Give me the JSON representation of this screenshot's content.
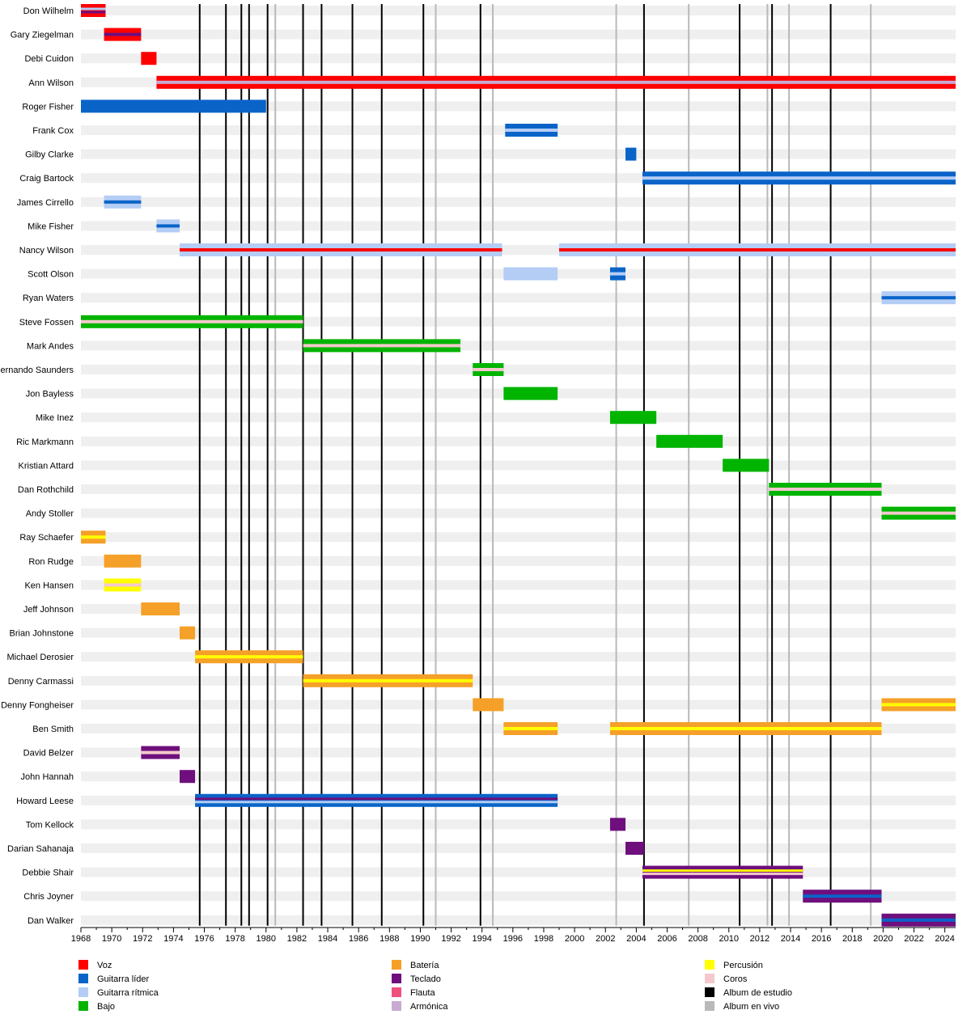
{
  "chart_data": {
    "type": "timeline",
    "x_range": [
      1968,
      2024.7
    ],
    "x_ticks": [
      1968,
      1970,
      1972,
      1974,
      1976,
      1978,
      1980,
      1982,
      1984,
      1986,
      1988,
      1990,
      1992,
      1994,
      1996,
      1998,
      2000,
      2002,
      2004,
      2006,
      2008,
      2010,
      2012,
      2014,
      2016,
      2018,
      2020,
      2022,
      2024
    ],
    "roles": [
      {
        "id": "voz",
        "label": "Voz",
        "color": "#ff0000"
      },
      {
        "id": "guitarra_lider",
        "label": "Guitarra líder",
        "color": "#0a64c8"
      },
      {
        "id": "guitarra_ritmica",
        "label": "Guitarra rítmica",
        "color": "#b4cdf5"
      },
      {
        "id": "bajo",
        "label": "Bajo",
        "color": "#00b400"
      },
      {
        "id": "bateria",
        "label": "Batería",
        "color": "#f5a028"
      },
      {
        "id": "teclado",
        "label": "Teclado",
        "color": "#6e0f7d"
      },
      {
        "id": "flauta",
        "label": "Flauta",
        "color": "#f0507d"
      },
      {
        "id": "armonica",
        "label": "Armónica",
        "color": "#c8aad2"
      },
      {
        "id": "percusion",
        "label": "Percusión",
        "color": "#ffff00"
      },
      {
        "id": "coros",
        "label": "Coros",
        "color": "#f5c8cd"
      },
      {
        "id": "album_estudio",
        "label": "Album de estudio",
        "color": "#000000"
      },
      {
        "id": "album_vivo",
        "label": "Album en vivo",
        "color": "#b9b9b9"
      }
    ],
    "studio_albums": [
      1975.7,
      1977.4,
      1978.4,
      1978.9,
      1980.1,
      1982.4,
      1983.6,
      1985.6,
      1987.5,
      1990.2,
      1993.9,
      2004.5,
      2010.7,
      2012.8,
      2016.6
    ],
    "live_albums": [
      1980.6,
      1991.0,
      1994.7,
      2002.7,
      2007.4,
      2012.5,
      2013.9,
      2019.2
    ],
    "members": [
      {
        "name": "Don Wilhelm",
        "periods": [
          {
            "start": 1968,
            "end": 1969.6,
            "role": "voz",
            "stripes": [
              "guitarra_ritmica",
              "teclado"
            ]
          }
        ]
      },
      {
        "name": "Gary Ziegelman",
        "periods": [
          {
            "start": 1969.5,
            "end": 1971.9,
            "role": "voz",
            "stripes": [
              "teclado"
            ]
          }
        ]
      },
      {
        "name": "Debi Cuidon",
        "periods": [
          {
            "start": 1971.9,
            "end": 1972.9,
            "role": "voz"
          }
        ]
      },
      {
        "name": "Ann Wilson",
        "periods": [
          {
            "start": 1972.9,
            "end": 2024.7,
            "role": "voz",
            "stripes": [
              "armonica"
            ]
          }
        ]
      },
      {
        "name": "Roger Fisher",
        "periods": [
          {
            "start": 1968,
            "end": 1980.0,
            "role": "guitarra_lider"
          }
        ]
      },
      {
        "name": "Frank Cox",
        "periods": [
          {
            "start": 1995.5,
            "end": 1998.9,
            "role": "guitarra_lider",
            "stripes": [
              "guitarra_ritmica"
            ]
          }
        ]
      },
      {
        "name": "Gilby Clarke",
        "periods": [
          {
            "start": 2003.3,
            "end": 2004.0,
            "role": "guitarra_lider"
          }
        ]
      },
      {
        "name": "Craig Bartock",
        "periods": [
          {
            "start": 2004.4,
            "end": 2024.7,
            "role": "guitarra_lider",
            "stripes": [
              "guitarra_ritmica"
            ]
          }
        ]
      },
      {
        "name": "James Cirrello",
        "periods": [
          {
            "start": 1969.5,
            "end": 1971.9,
            "role": "guitarra_ritmica",
            "stripes": [
              "guitarra_lider"
            ]
          }
        ]
      },
      {
        "name": "Mike Fisher",
        "periods": [
          {
            "start": 1972.9,
            "end": 1974.4,
            "role": "guitarra_ritmica",
            "stripes": [
              "guitarra_lider"
            ]
          }
        ]
      },
      {
        "name": "Nancy Wilson",
        "periods": [
          {
            "start": 1974.4,
            "end": 1995.3,
            "role": "guitarra_ritmica",
            "stripes": [
              "voz"
            ]
          },
          {
            "start": 1999.0,
            "end": 2024.7,
            "role": "guitarra_ritmica",
            "stripes": [
              "voz"
            ]
          }
        ]
      },
      {
        "name": "Scott Olson",
        "periods": [
          {
            "start": 1995.4,
            "end": 1998.9,
            "role": "guitarra_ritmica"
          },
          {
            "start": 2002.3,
            "end": 2003.3,
            "role": "guitarra_lider",
            "stripes": [
              "guitarra_ritmica"
            ]
          }
        ]
      },
      {
        "name": "Ryan Waters",
        "periods": [
          {
            "start": 2019.9,
            "end": 2024.7,
            "role": "guitarra_ritmica",
            "stripes": [
              "guitarra_lider"
            ]
          }
        ]
      },
      {
        "name": "Steve Fossen",
        "periods": [
          {
            "start": 1968,
            "end": 1982.4,
            "role": "bajo",
            "stripes": [
              "coros"
            ]
          }
        ]
      },
      {
        "name": "Mark Andes",
        "periods": [
          {
            "start": 1982.4,
            "end": 1992.6,
            "role": "bajo",
            "stripes": [
              "coros"
            ]
          }
        ]
      },
      {
        "name": "Fernando Saunders",
        "periods": [
          {
            "start": 1993.4,
            "end": 1995.4,
            "role": "bajo",
            "stripes": [
              "coros"
            ]
          }
        ]
      },
      {
        "name": "Jon Bayless",
        "periods": [
          {
            "start": 1995.4,
            "end": 1998.9,
            "role": "bajo"
          }
        ]
      },
      {
        "name": "Mike Inez",
        "periods": [
          {
            "start": 2002.3,
            "end": 2005.3,
            "role": "bajo"
          }
        ]
      },
      {
        "name": "Ric Markmann",
        "periods": [
          {
            "start": 2005.3,
            "end": 2009.6,
            "role": "bajo"
          }
        ]
      },
      {
        "name": "Kristian Attard",
        "periods": [
          {
            "start": 2009.6,
            "end": 2012.6,
            "role": "bajo"
          }
        ]
      },
      {
        "name": "Dan Rothchild",
        "periods": [
          {
            "start": 2012.6,
            "end": 2019.9,
            "role": "bajo",
            "stripes": [
              "coros"
            ]
          }
        ]
      },
      {
        "name": "Andy Stoller",
        "periods": [
          {
            "start": 2019.9,
            "end": 2024.7,
            "role": "bajo",
            "stripes": [
              "coros"
            ]
          }
        ]
      },
      {
        "name": "Ray Schaefer",
        "periods": [
          {
            "start": 1968,
            "end": 1969.6,
            "role": "bateria",
            "stripes": [
              "percusion"
            ]
          }
        ]
      },
      {
        "name": "Ron Rudge",
        "periods": [
          {
            "start": 1969.5,
            "end": 1971.9,
            "role": "bateria"
          }
        ]
      },
      {
        "name": "Ken Hansen",
        "periods": [
          {
            "start": 1969.5,
            "end": 1971.9,
            "role": "percusion",
            "stripes": [
              "coros"
            ]
          }
        ]
      },
      {
        "name": "Jeff Johnson",
        "periods": [
          {
            "start": 1971.9,
            "end": 1974.4,
            "role": "bateria"
          }
        ]
      },
      {
        "name": "Brian Johnstone",
        "periods": [
          {
            "start": 1974.4,
            "end": 1975.4,
            "role": "bateria"
          }
        ]
      },
      {
        "name": "Michael Derosier",
        "periods": [
          {
            "start": 1975.4,
            "end": 1982.4,
            "role": "bateria",
            "stripes": [
              "percusion"
            ]
          }
        ]
      },
      {
        "name": "Denny Carmassi",
        "periods": [
          {
            "start": 1982.4,
            "end": 1993.4,
            "role": "bateria",
            "stripes": [
              "percusion"
            ]
          }
        ]
      },
      {
        "name": "Denny Fongheiser",
        "periods": [
          {
            "start": 1993.4,
            "end": 1995.4,
            "role": "bateria"
          },
          {
            "start": 2019.9,
            "end": 2024.7,
            "role": "bateria",
            "stripes": [
              "percusion"
            ]
          }
        ]
      },
      {
        "name": "Ben Smith",
        "periods": [
          {
            "start": 1995.4,
            "end": 1998.9,
            "role": "bateria",
            "stripes": [
              "percusion"
            ]
          },
          {
            "start": 2002.3,
            "end": 2019.9,
            "role": "bateria",
            "stripes": [
              "percusion"
            ]
          }
        ]
      },
      {
        "name": "David Belzer",
        "periods": [
          {
            "start": 1971.9,
            "end": 1974.4,
            "role": "teclado",
            "stripes": [
              "coros"
            ]
          }
        ]
      },
      {
        "name": "John Hannah",
        "periods": [
          {
            "start": 1974.4,
            "end": 1975.4,
            "role": "teclado"
          }
        ]
      },
      {
        "name": "Howard Leese",
        "periods": [
          {
            "start": 1975.4,
            "end": 1998.9,
            "role": "guitarra_lider",
            "stripes": [
              "teclado",
              "guitarra_ritmica"
            ]
          }
        ]
      },
      {
        "name": "Tom Kellock",
        "periods": [
          {
            "start": 2002.3,
            "end": 2003.3,
            "role": "teclado"
          }
        ]
      },
      {
        "name": "Darian Sahanaja",
        "periods": [
          {
            "start": 2003.3,
            "end": 2004.5,
            "role": "teclado"
          }
        ]
      },
      {
        "name": "Debbie Shair",
        "periods": [
          {
            "start": 2004.4,
            "end": 2014.8,
            "role": "teclado",
            "stripes": [
              "percusion",
              "coros"
            ]
          }
        ]
      },
      {
        "name": "Chris Joyner",
        "periods": [
          {
            "start": 2014.8,
            "end": 2019.9,
            "role": "teclado",
            "stripes": [
              "guitarra_lider"
            ]
          }
        ]
      },
      {
        "name": "Dan Walker",
        "periods": [
          {
            "start": 2019.9,
            "end": 2024.7,
            "role": "teclado",
            "stripes": [
              "guitarra_lider"
            ]
          }
        ]
      }
    ]
  }
}
